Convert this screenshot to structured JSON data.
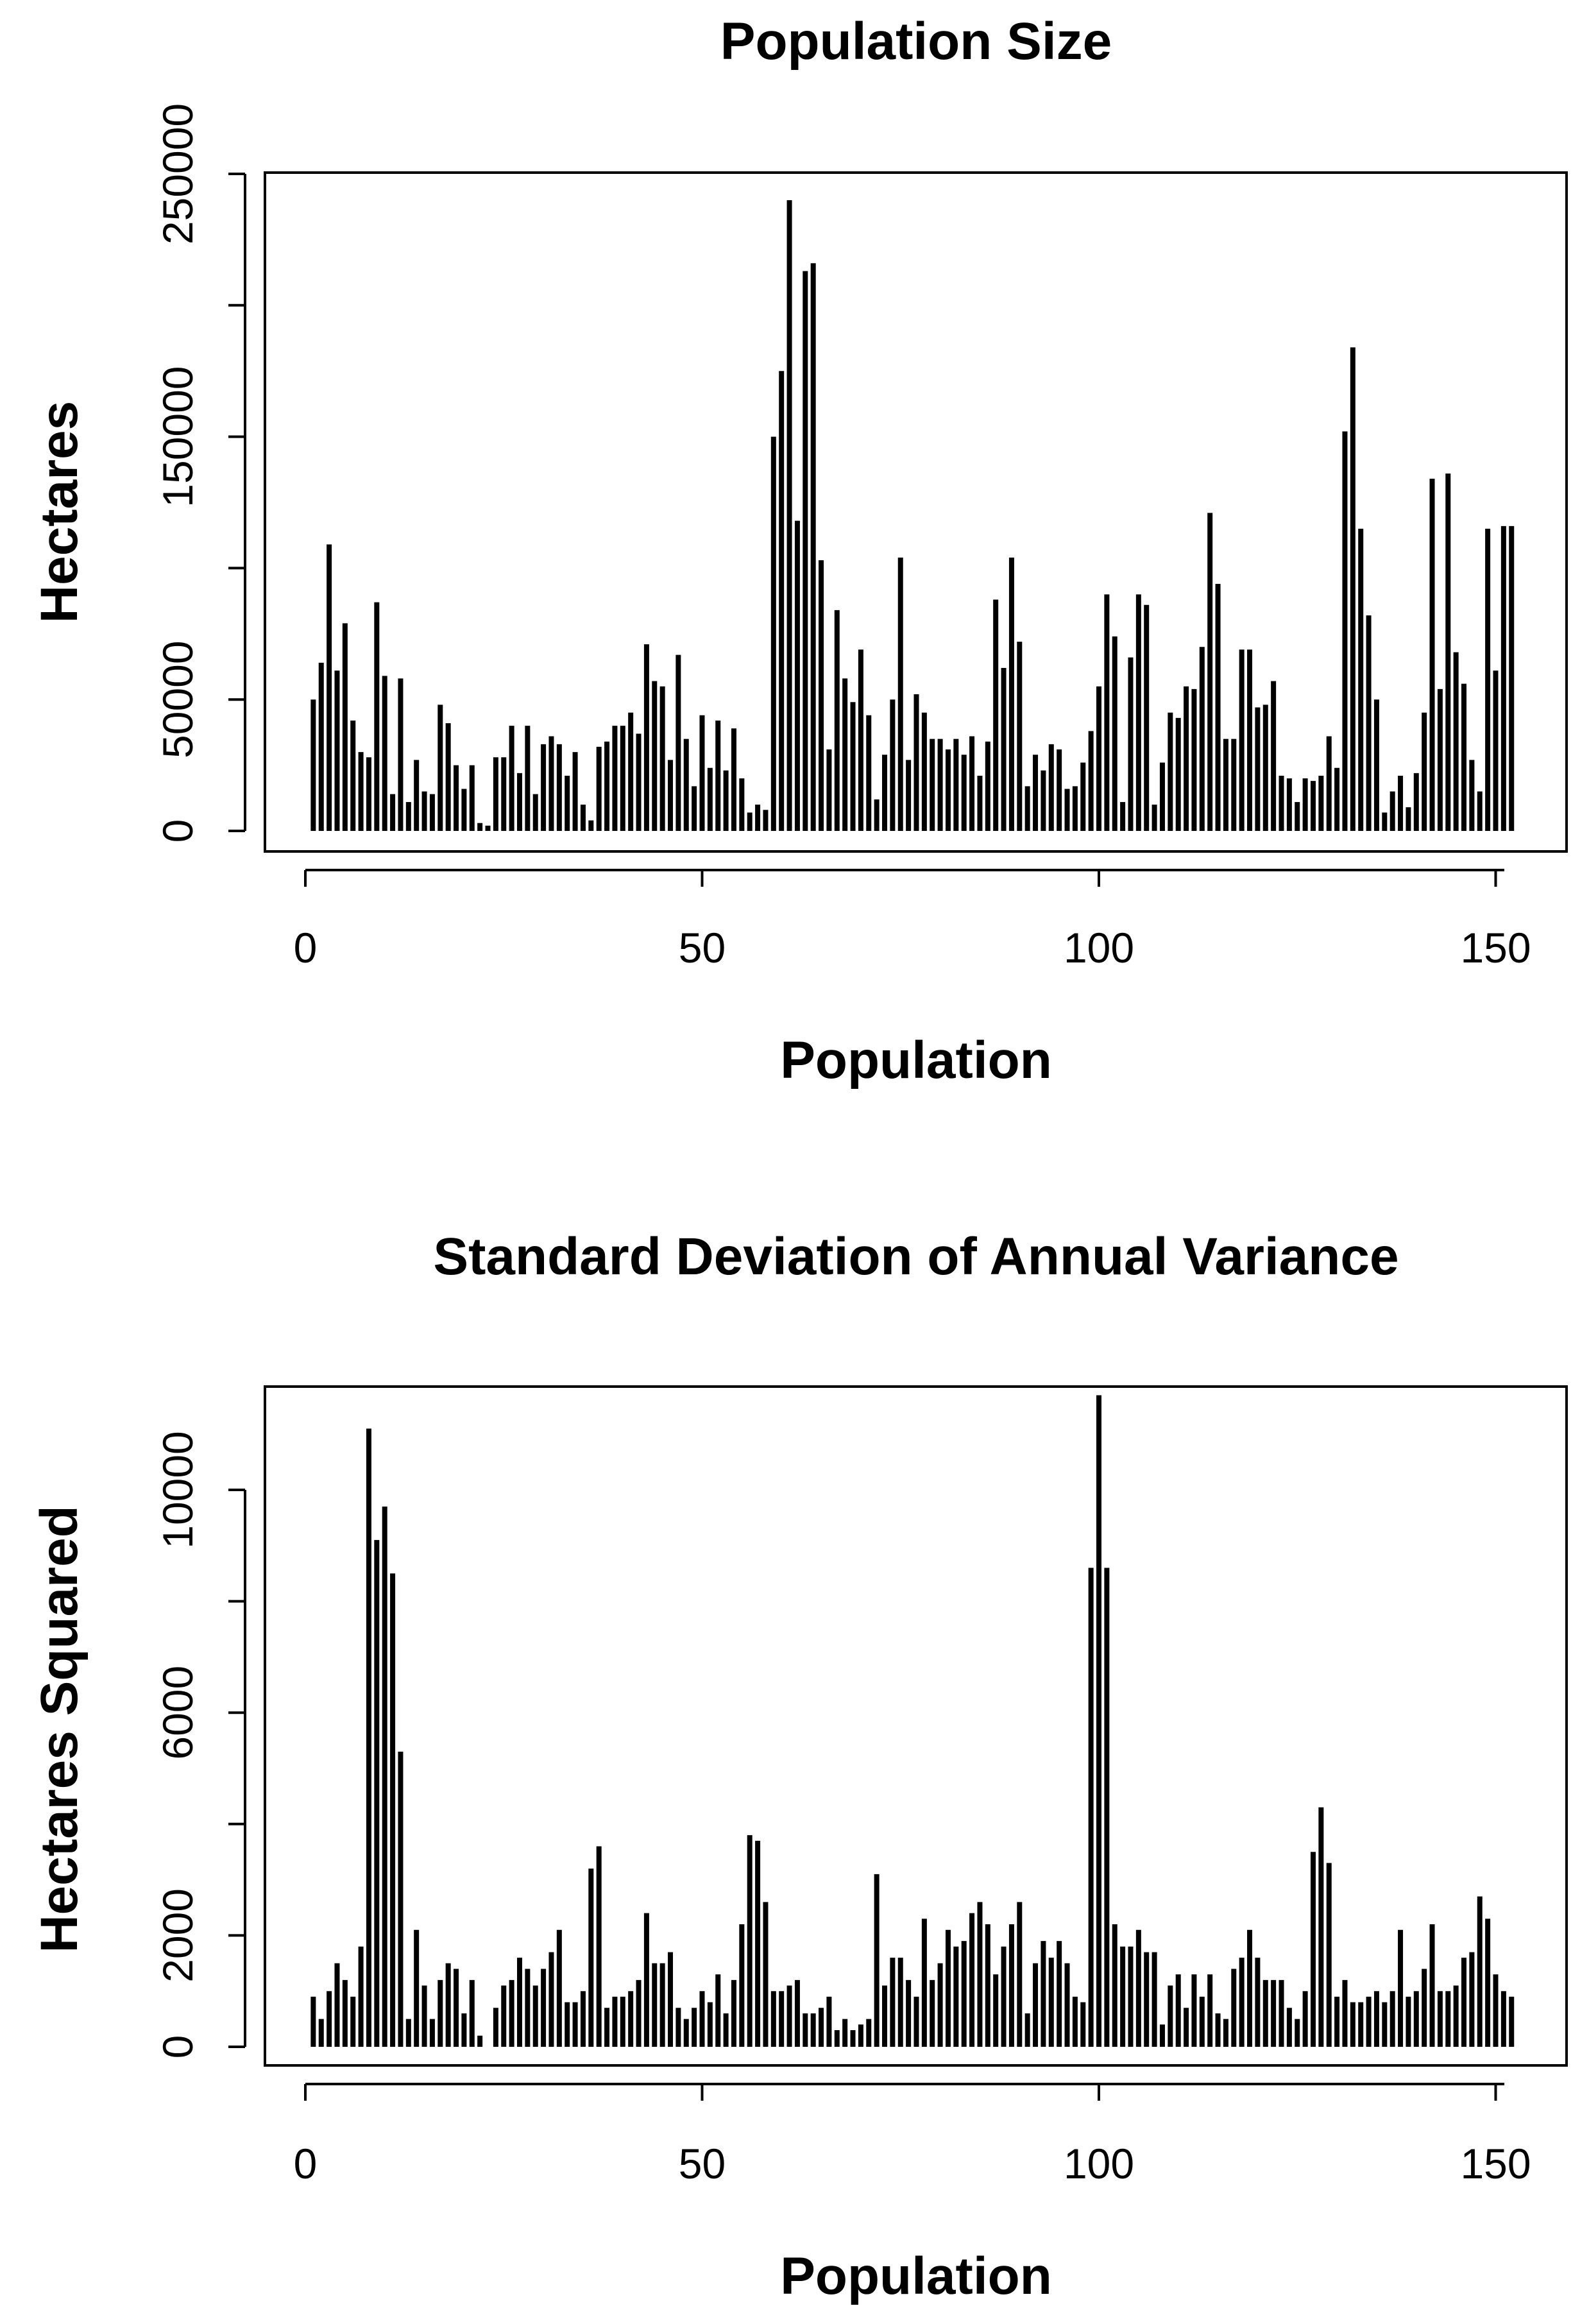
{
  "chart_data": [
    {
      "type": "bar",
      "title": "Population Size",
      "xlabel": "Population",
      "ylabel": "Hectares",
      "xlim": [
        1,
        152
      ],
      "ylim": [
        0,
        250000
      ],
      "xticks": [
        0,
        50,
        100,
        150
      ],
      "yticks": [
        0,
        50000,
        100000,
        150000,
        200000,
        250000
      ],
      "ytick_labels": [
        "0",
        "50000",
        "",
        "150000",
        "",
        "250000"
      ],
      "color": "#000000",
      "x": [
        1,
        2,
        3,
        4,
        5,
        6,
        7,
        8,
        9,
        10,
        11,
        12,
        13,
        14,
        15,
        16,
        17,
        18,
        19,
        20,
        21,
        22,
        23,
        24,
        25,
        26,
        27,
        28,
        29,
        30,
        31,
        32,
        33,
        34,
        35,
        36,
        37,
        38,
        39,
        40,
        41,
        42,
        43,
        44,
        45,
        46,
        47,
        48,
        49,
        50,
        51,
        52,
        53,
        54,
        55,
        56,
        57,
        58,
        59,
        60,
        61,
        62,
        63,
        64,
        65,
        66,
        67,
        68,
        69,
        70,
        71,
        72,
        73,
        74,
        75,
        76,
        77,
        78,
        79,
        80,
        81,
        82,
        83,
        84,
        85,
        86,
        87,
        88,
        89,
        90,
        91,
        92,
        93,
        94,
        95,
        96,
        97,
        98,
        99,
        100,
        101,
        102,
        103,
        104,
        105,
        106,
        107,
        108,
        109,
        110,
        111,
        112,
        113,
        114,
        115,
        116,
        117,
        118,
        119,
        120,
        121,
        122,
        123,
        124,
        125,
        126,
        127,
        128,
        129,
        130,
        131,
        132,
        133,
        134,
        135,
        136,
        137,
        138,
        139,
        140,
        141,
        142,
        143,
        144,
        145,
        146,
        147,
        148,
        149,
        150,
        151,
        152
      ],
      "values": [
        50000,
        64000,
        109000,
        61000,
        79000,
        42000,
        30000,
        28000,
        87000,
        59000,
        14000,
        58000,
        11000,
        27000,
        15000,
        14000,
        48000,
        41000,
        25000,
        16000,
        25000,
        3000,
        2000,
        28000,
        28000,
        40000,
        22000,
        40000,
        14000,
        33000,
        36000,
        33000,
        21000,
        30000,
        10000,
        4000,
        32000,
        34000,
        40000,
        40000,
        45000,
        37000,
        71000,
        57000,
        55000,
        27000,
        67000,
        35000,
        17000,
        44000,
        24000,
        42000,
        23000,
        39000,
        20000,
        7000,
        10000,
        8000,
        150000,
        175000,
        240000,
        118000,
        213000,
        216000,
        103000,
        31000,
        84000,
        58000,
        49000,
        69000,
        44000,
        12000,
        29000,
        50000,
        104000,
        27000,
        52000,
        45000,
        35000,
        35000,
        31000,
        35000,
        29000,
        36000,
        21000,
        34000,
        88000,
        62000,
        104000,
        72000,
        17000,
        29000,
        23000,
        33000,
        31000,
        16000,
        17000,
        26000,
        38000,
        55000,
        90000,
        74000,
        11000,
        66000,
        90000,
        86000,
        10000,
        26000,
        45000,
        43000,
        55000,
        54000,
        70000,
        121000,
        94000,
        35000,
        35000,
        69000,
        69000,
        47000,
        48000,
        57000,
        21000,
        20000,
        11000,
        20000,
        19000,
        21000,
        36000,
        24000,
        152000,
        184000,
        115000,
        82000,
        50000,
        7000,
        15000,
        21000,
        9000,
        22000,
        45000,
        134000,
        54000,
        136000,
        68000,
        56000,
        27000,
        15000,
        115000,
        61000,
        116000,
        116000
      ]
    },
    {
      "type": "bar",
      "title": "Standard Deviation of Annual Variance",
      "xlabel": "Population",
      "ylabel": "Hectares Squared",
      "xlim": [
        1,
        152
      ],
      "ylim": [
        0,
        12000
      ],
      "xticks": [
        0,
        50,
        100,
        150
      ],
      "yticks": [
        0,
        2000,
        4000,
        6000,
        8000,
        10000
      ],
      "ytick_labels": [
        "0",
        "2000",
        "",
        "6000",
        "",
        "10000"
      ],
      "color": "#000000",
      "x": [
        1,
        2,
        3,
        4,
        5,
        6,
        7,
        8,
        9,
        10,
        11,
        12,
        13,
        14,
        15,
        16,
        17,
        18,
        19,
        20,
        21,
        22,
        23,
        24,
        25,
        26,
        27,
        28,
        29,
        30,
        31,
        32,
        33,
        34,
        35,
        36,
        37,
        38,
        39,
        40,
        41,
        42,
        43,
        44,
        45,
        46,
        47,
        48,
        49,
        50,
        51,
        52,
        53,
        54,
        55,
        56,
        57,
        58,
        59,
        60,
        61,
        62,
        63,
        64,
        65,
        66,
        67,
        68,
        69,
        70,
        71,
        72,
        73,
        74,
        75,
        76,
        77,
        78,
        79,
        80,
        81,
        82,
        83,
        84,
        85,
        86,
        87,
        88,
        89,
        90,
        91,
        92,
        93,
        94,
        95,
        96,
        97,
        98,
        99,
        100,
        101,
        102,
        103,
        104,
        105,
        106,
        107,
        108,
        109,
        110,
        111,
        112,
        113,
        114,
        115,
        116,
        117,
        118,
        119,
        120,
        121,
        122,
        123,
        124,
        125,
        126,
        127,
        128,
        129,
        130,
        131,
        132,
        133,
        134,
        135,
        136,
        137,
        138,
        139,
        140,
        141,
        142,
        143,
        144,
        145,
        146,
        147,
        148,
        149,
        150,
        151,
        152
      ],
      "values": [
        900,
        500,
        1000,
        1500,
        1200,
        900,
        1800,
        11100,
        9100,
        9700,
        8500,
        5300,
        500,
        2100,
        1100,
        500,
        1200,
        1500,
        1400,
        600,
        1200,
        200,
        0,
        700,
        1100,
        1200,
        1600,
        1400,
        1100,
        1400,
        1700,
        2100,
        800,
        800,
        1000,
        3200,
        3600,
        700,
        900,
        900,
        1000,
        1200,
        2400,
        1500,
        1500,
        1700,
        700,
        500,
        700,
        1000,
        800,
        1300,
        600,
        1200,
        2200,
        3800,
        3700,
        2600,
        1000,
        1000,
        1100,
        1200,
        600,
        600,
        700,
        900,
        300,
        500,
        300,
        400,
        500,
        3100,
        1100,
        1600,
        1600,
        1200,
        900,
        2300,
        1200,
        1500,
        2100,
        1800,
        1900,
        2400,
        2600,
        2200,
        1300,
        1800,
        2200,
        2600,
        600,
        1500,
        1900,
        1600,
        1900,
        1500,
        900,
        800,
        8600,
        11700,
        8600,
        2200,
        1800,
        1800,
        2100,
        1700,
        1700,
        400,
        1100,
        1300,
        700,
        1300,
        900,
        1300,
        600,
        500,
        1400,
        1600,
        2100,
        1600,
        1200,
        1200,
        1200,
        700,
        500,
        1000,
        3500,
        4300,
        3300,
        900,
        1200,
        800,
        800,
        900,
        1000,
        800,
        1000,
        2100,
        900,
        1000,
        1400,
        2200,
        1000,
        1000,
        1100,
        1600,
        1700,
        2700,
        2300,
        1300,
        1000,
        900
      ]
    }
  ]
}
